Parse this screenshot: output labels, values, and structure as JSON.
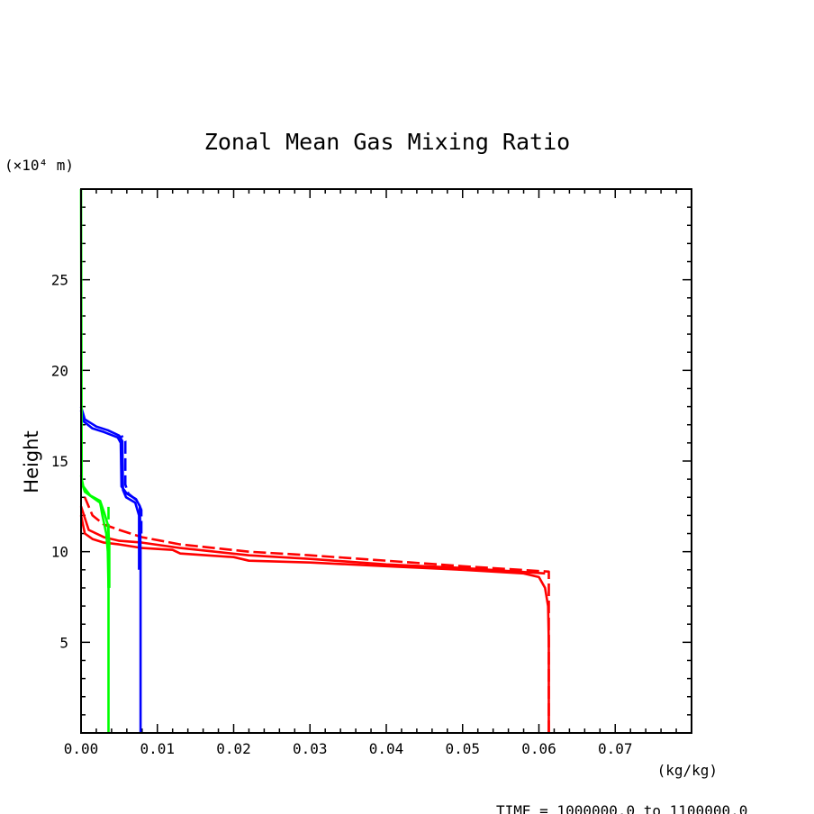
{
  "chart_data": {
    "type": "line",
    "title": "Zonal Mean Gas Mixing Ratio",
    "ylabel": "Height",
    "y_unit": "(×10⁴ m)",
    "x_unit": "(kg/kg)",
    "footer": "TIME = 1000000.0 to 1100000.0",
    "xlim": [
      0.0,
      0.08
    ],
    "ylim": [
      0,
      30
    ],
    "x_ticks": [
      "0.00",
      "0.01",
      "0.02",
      "0.03",
      "0.04",
      "0.05",
      "0.06",
      "0.07"
    ],
    "y_ticks": [
      "5",
      "10",
      "15",
      "20",
      "25"
    ],
    "grid": false,
    "series": [
      {
        "color": "#ff0000",
        "dash": "solid",
        "points": [
          [
            0.0613,
            0.0
          ],
          [
            0.0613,
            5.0
          ],
          [
            0.0612,
            7.0
          ],
          [
            0.0608,
            8.0
          ],
          [
            0.06,
            8.6
          ],
          [
            0.058,
            8.8
          ],
          [
            0.05,
            9.0
          ],
          [
            0.04,
            9.2
          ],
          [
            0.03,
            9.4
          ],
          [
            0.022,
            9.5
          ],
          [
            0.02,
            9.7
          ],
          [
            0.013,
            9.9
          ],
          [
            0.012,
            10.1
          ],
          [
            0.008,
            10.2
          ],
          [
            0.005,
            10.4
          ],
          [
            0.003,
            10.5
          ],
          [
            0.0015,
            10.7
          ],
          [
            0.0005,
            11.0
          ],
          [
            0.0,
            12.0
          ]
        ]
      },
      {
        "color": "#ff0000",
        "dash": "solid",
        "points": [
          [
            0.0608,
            8.8
          ],
          [
            0.05,
            9.1
          ],
          [
            0.04,
            9.3
          ],
          [
            0.03,
            9.6
          ],
          [
            0.022,
            9.8
          ],
          [
            0.013,
            10.2
          ],
          [
            0.008,
            10.5
          ],
          [
            0.005,
            10.6
          ],
          [
            0.003,
            10.8
          ],
          [
            0.001,
            11.2
          ],
          [
            0.0,
            12.5
          ]
        ]
      },
      {
        "color": "#ff0000",
        "dash": "dashed",
        "points": [
          [
            0.0613,
            0.0
          ],
          [
            0.0613,
            8.9
          ],
          [
            0.05,
            9.2
          ],
          [
            0.04,
            9.5
          ],
          [
            0.03,
            9.8
          ],
          [
            0.022,
            10.0
          ],
          [
            0.013,
            10.4
          ],
          [
            0.008,
            10.8
          ],
          [
            0.005,
            11.2
          ],
          [
            0.003,
            11.5
          ],
          [
            0.0015,
            12.0
          ],
          [
            0.0005,
            13.0
          ]
        ]
      },
      {
        "color": "#0000ff",
        "dash": "solid",
        "points": [
          [
            0.0078,
            0.0
          ],
          [
            0.0078,
            10.0
          ],
          [
            0.0077,
            12.5
          ],
          [
            0.0072,
            12.9
          ],
          [
            0.006,
            13.2
          ],
          [
            0.0053,
            13.6
          ],
          [
            0.0052,
            16.0
          ],
          [
            0.0048,
            16.3
          ],
          [
            0.003,
            16.6
          ],
          [
            0.0015,
            16.8
          ],
          [
            0.0003,
            17.2
          ],
          [
            0.0,
            17.8
          ]
        ]
      },
      {
        "color": "#0000ff",
        "dash": "solid",
        "points": [
          [
            0.0076,
            9.0
          ],
          [
            0.0076,
            12.0
          ],
          [
            0.0071,
            12.7
          ],
          [
            0.0059,
            13.0
          ],
          [
            0.0055,
            13.4
          ],
          [
            0.0054,
            16.1
          ],
          [
            0.005,
            16.4
          ],
          [
            0.0035,
            16.7
          ],
          [
            0.002,
            16.9
          ],
          [
            0.0005,
            17.3
          ],
          [
            0.0,
            18.0
          ]
        ]
      },
      {
        "color": "#0000ff",
        "dash": "dashed",
        "points": [
          [
            0.0079,
            11.0
          ],
          [
            0.0079,
            12.3
          ],
          [
            0.0074,
            12.8
          ],
          [
            0.0062,
            13.2
          ],
          [
            0.0058,
            13.7
          ],
          [
            0.0058,
            16.1
          ],
          [
            0.0053,
            16.4
          ]
        ]
      },
      {
        "color": "#00ff00",
        "dash": "solid",
        "points": [
          [
            0.0036,
            0.0
          ],
          [
            0.0036,
            8.0
          ],
          [
            0.0035,
            10.0
          ],
          [
            0.0033,
            11.0
          ],
          [
            0.0028,
            12.0
          ],
          [
            0.0025,
            12.7
          ],
          [
            0.0015,
            13.0
          ],
          [
            0.0005,
            13.3
          ],
          [
            0.0001,
            13.8
          ],
          [
            0.0,
            30.0
          ]
        ]
      },
      {
        "color": "#00ff00",
        "dash": "solid",
        "points": [
          [
            0.0037,
            8.0
          ],
          [
            0.0037,
            10.5
          ],
          [
            0.0035,
            11.5
          ],
          [
            0.003,
            12.2
          ],
          [
            0.0025,
            12.8
          ],
          [
            0.0012,
            13.1
          ],
          [
            0.0003,
            13.6
          ],
          [
            0.0,
            14.2
          ]
        ]
      },
      {
        "color": "#00ff00",
        "dash": "dashed",
        "points": [
          [
            0.0036,
            8.0
          ],
          [
            0.0036,
            12.5
          ]
        ]
      }
    ]
  }
}
